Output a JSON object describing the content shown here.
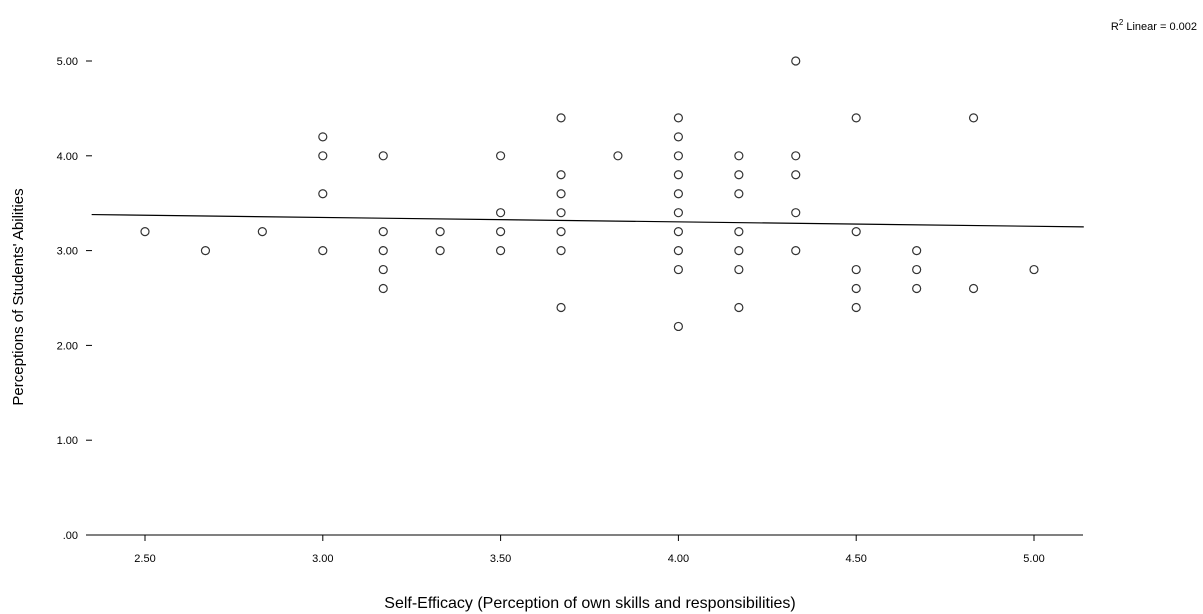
{
  "chart_data": {
    "type": "scatter",
    "title": "",
    "xlabel": "Self-Efficacy (Perception of own skills and responsibilities)",
    "ylabel": "Perceptions of Students' Abilities",
    "xlim": [
      2.35,
      5.14
    ],
    "ylim": [
      0,
      5.25
    ],
    "x_ticks": [
      "2.50",
      "3.00",
      "3.50",
      "4.00",
      "4.50",
      "5.00"
    ],
    "x_tick_values": [
      2.5,
      3.0,
      3.5,
      4.0,
      4.5,
      5.0
    ],
    "y_ticks": [
      ".00",
      "1.00",
      "2.00",
      "3.00",
      "4.00",
      "5.00"
    ],
    "y_tick_values": [
      0,
      1,
      2,
      3,
      4,
      5
    ],
    "grid": false,
    "fit_line": {
      "type": "linear",
      "label_prefix": "R",
      "label_superscript": "2",
      "label_rest": " Linear = 0.002",
      "x": [
        2.35,
        5.14
      ],
      "y": [
        3.38,
        3.25
      ]
    },
    "points": [
      {
        "x": 2.5,
        "y": 3.2
      },
      {
        "x": 2.67,
        "y": 3.0
      },
      {
        "x": 2.83,
        "y": 3.2
      },
      {
        "x": 3.0,
        "y": 4.2
      },
      {
        "x": 3.0,
        "y": 4.0
      },
      {
        "x": 3.0,
        "y": 3.6
      },
      {
        "x": 3.0,
        "y": 3.0
      },
      {
        "x": 3.17,
        "y": 4.0
      },
      {
        "x": 3.17,
        "y": 3.2
      },
      {
        "x": 3.17,
        "y": 3.0
      },
      {
        "x": 3.17,
        "y": 2.8
      },
      {
        "x": 3.17,
        "y": 2.6
      },
      {
        "x": 3.33,
        "y": 3.2
      },
      {
        "x": 3.33,
        "y": 3.0
      },
      {
        "x": 3.5,
        "y": 4.0
      },
      {
        "x": 3.5,
        "y": 3.4
      },
      {
        "x": 3.5,
        "y": 3.2
      },
      {
        "x": 3.5,
        "y": 3.0
      },
      {
        "x": 3.67,
        "y": 4.4
      },
      {
        "x": 3.67,
        "y": 3.8
      },
      {
        "x": 3.67,
        "y": 3.6
      },
      {
        "x": 3.67,
        "y": 3.4
      },
      {
        "x": 3.67,
        "y": 3.2
      },
      {
        "x": 3.67,
        "y": 3.0
      },
      {
        "x": 3.67,
        "y": 2.4
      },
      {
        "x": 3.83,
        "y": 4.0
      },
      {
        "x": 4.0,
        "y": 4.4
      },
      {
        "x": 4.0,
        "y": 4.2
      },
      {
        "x": 4.0,
        "y": 4.0
      },
      {
        "x": 4.0,
        "y": 3.8
      },
      {
        "x": 4.0,
        "y": 3.6
      },
      {
        "x": 4.0,
        "y": 3.4
      },
      {
        "x": 4.0,
        "y": 3.2
      },
      {
        "x": 4.0,
        "y": 3.0
      },
      {
        "x": 4.0,
        "y": 2.8
      },
      {
        "x": 4.0,
        "y": 2.2
      },
      {
        "x": 4.17,
        "y": 4.0
      },
      {
        "x": 4.17,
        "y": 3.8
      },
      {
        "x": 4.17,
        "y": 3.6
      },
      {
        "x": 4.17,
        "y": 3.2
      },
      {
        "x": 4.17,
        "y": 3.0
      },
      {
        "x": 4.17,
        "y": 2.8
      },
      {
        "x": 4.17,
        "y": 2.4
      },
      {
        "x": 4.33,
        "y": 5.0
      },
      {
        "x": 4.33,
        "y": 4.0
      },
      {
        "x": 4.33,
        "y": 3.8
      },
      {
        "x": 4.33,
        "y": 3.4
      },
      {
        "x": 4.33,
        "y": 3.0
      },
      {
        "x": 4.5,
        "y": 4.4
      },
      {
        "x": 4.5,
        "y": 3.2
      },
      {
        "x": 4.5,
        "y": 2.8
      },
      {
        "x": 4.5,
        "y": 2.6
      },
      {
        "x": 4.5,
        "y": 2.4
      },
      {
        "x": 4.67,
        "y": 3.0
      },
      {
        "x": 4.67,
        "y": 2.8
      },
      {
        "x": 4.67,
        "y": 2.6
      },
      {
        "x": 4.83,
        "y": 4.4
      },
      {
        "x": 4.83,
        "y": 2.6
      },
      {
        "x": 5.0,
        "y": 2.8
      }
    ]
  }
}
